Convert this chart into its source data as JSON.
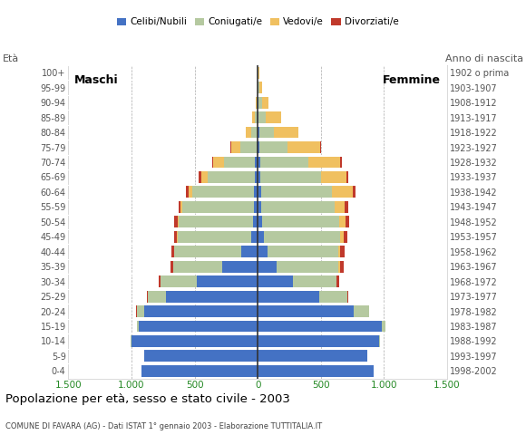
{
  "age_groups": [
    "0-4",
    "5-9",
    "10-14",
    "15-19",
    "20-24",
    "25-29",
    "30-34",
    "35-39",
    "40-44",
    "45-49",
    "50-54",
    "55-59",
    "60-64",
    "65-69",
    "70-74",
    "75-79",
    "80-84",
    "85-89",
    "90-94",
    "95-99",
    "100+"
  ],
  "birth_years": [
    "1998-2002",
    "1993-1997",
    "1988-1992",
    "1983-1987",
    "1978-1982",
    "1973-1977",
    "1968-1972",
    "1963-1967",
    "1958-1962",
    "1953-1957",
    "1948-1952",
    "1943-1947",
    "1938-1942",
    "1933-1937",
    "1928-1932",
    "1923-1927",
    "1918-1922",
    "1913-1917",
    "1908-1912",
    "1903-1907",
    "1902 o prima"
  ],
  "males": {
    "celibe": [
      920,
      900,
      1000,
      940,
      900,
      730,
      480,
      280,
      130,
      55,
      40,
      30,
      30,
      20,
      20,
      10,
      0,
      0,
      0,
      0,
      0
    ],
    "coniugato": [
      0,
      0,
      5,
      15,
      60,
      140,
      290,
      390,
      530,
      580,
      590,
      570,
      490,
      380,
      250,
      130,
      55,
      25,
      10,
      5,
      0
    ],
    "vedovo": [
      0,
      0,
      0,
      0,
      0,
      0,
      0,
      0,
      0,
      5,
      5,
      10,
      30,
      50,
      80,
      70,
      40,
      20,
      5,
      0,
      0
    ],
    "divorziato": [
      0,
      0,
      0,
      0,
      5,
      5,
      15,
      20,
      25,
      25,
      25,
      20,
      20,
      15,
      10,
      5,
      0,
      0,
      0,
      0,
      0
    ]
  },
  "females": {
    "nubile": [
      920,
      870,
      960,
      980,
      760,
      490,
      280,
      150,
      80,
      50,
      35,
      30,
      30,
      20,
      20,
      15,
      10,
      5,
      5,
      0,
      0
    ],
    "coniugata": [
      0,
      0,
      5,
      30,
      120,
      220,
      340,
      490,
      560,
      600,
      610,
      580,
      560,
      480,
      380,
      220,
      120,
      60,
      30,
      15,
      5
    ],
    "vedova": [
      0,
      0,
      0,
      0,
      0,
      0,
      5,
      10,
      15,
      30,
      50,
      80,
      160,
      200,
      250,
      260,
      190,
      120,
      50,
      20,
      5
    ],
    "divorziata": [
      0,
      0,
      0,
      0,
      5,
      10,
      20,
      30,
      35,
      30,
      30,
      25,
      25,
      20,
      20,
      10,
      5,
      0,
      0,
      0,
      0
    ]
  },
  "colors": {
    "celibe_nubile": "#4472c4",
    "coniugato_coniugata": "#b5c9a0",
    "vedovo_vedova": "#f0c060",
    "divorziato_divorziata": "#c0392b"
  },
  "legend_labels": [
    "Celibi/Nubili",
    "Coniugati/e",
    "Vedovi/e",
    "Divorziati/e"
  ],
  "title": "Popolazione per età, sesso e stato civile - 2003",
  "subtitle": "COMUNE DI FAVARA (AG) - Dati ISTAT 1° gennaio 2003 - Elaborazione TUTTITALIA.IT",
  "label_maschi": "Maschi",
  "label_femmine": "Femmine",
  "label_eta": "Età",
  "label_anno": "Anno di nascita",
  "xlim": 1500,
  "background_color": "#ffffff",
  "grid_color": "#aaaaaa"
}
